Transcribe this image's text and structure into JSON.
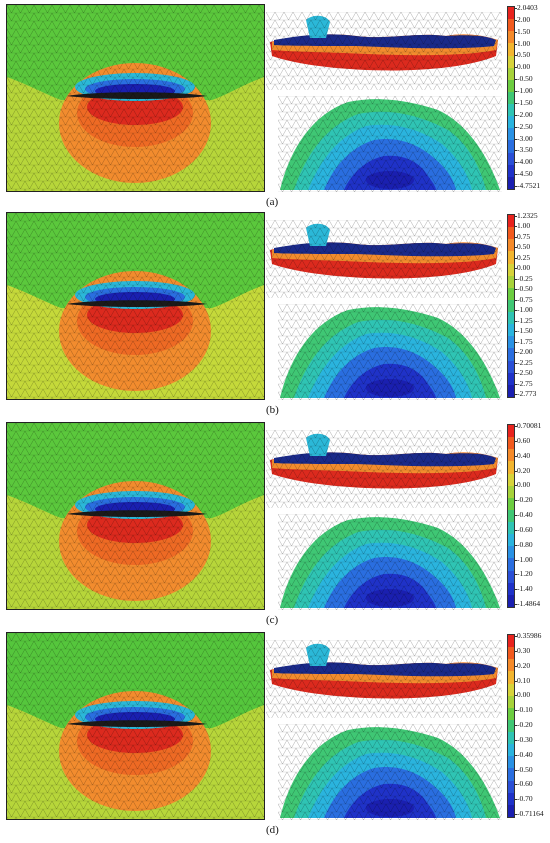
{
  "panels": [
    {
      "caption": "(a)",
      "ticks": [
        "2.0403",
        "2.00",
        "1.50",
        "1.00",
        "0.50",
        "0.00",
        "-0.50",
        "-1.00",
        "-1.50",
        "-2.00",
        "-2.50",
        "-3.00",
        "-3.50",
        "-4.00",
        "-4.50",
        "-4.7521"
      ],
      "upper_bg": "#5bc83c",
      "lower_bg": "#b7d63a"
    },
    {
      "caption": "(b)",
      "ticks": [
        "1.2325",
        "1.00",
        "0.75",
        "0.50",
        "0.25",
        "0.00",
        "-0.25",
        "-0.50",
        "-0.75",
        "-1.00",
        "-1.25",
        "-1.50",
        "-1.75",
        "-2.00",
        "-2.25",
        "-2.50",
        "-2.75",
        "-2.773"
      ],
      "upper_bg": "#5bc83c",
      "lower_bg": "#c5d93a"
    },
    {
      "caption": "(c)",
      "ticks": [
        "0.70081",
        "0.60",
        "0.40",
        "0.20",
        "0.00",
        "-0.20",
        "-0.40",
        "-0.60",
        "-0.80",
        "-1.00",
        "-1.20",
        "-1.40",
        "-1.4864"
      ],
      "upper_bg": "#5bc83c",
      "lower_bg": "#b7d63a"
    },
    {
      "caption": "(d)",
      "ticks": [
        "0.35986",
        "0.30",
        "0.20",
        "0.10",
        "0.00",
        "-0.10",
        "-0.20",
        "-0.30",
        "-0.40",
        "-0.50",
        "-0.60",
        "-0.70",
        "-0.71164"
      ],
      "upper_bg": "#55c63c",
      "lower_bg": "#b7d63a"
    }
  ],
  "colors": {
    "scale": [
      "#e8231e",
      "#f25a1e",
      "#f58a2a",
      "#f2b530",
      "#d6d23a",
      "#a7d23a",
      "#6ccd40",
      "#3fc774",
      "#2fc4b4",
      "#2ab4de",
      "#2a92e4",
      "#2a6ee0",
      "#2a4fd6",
      "#1f32c8",
      "#1a1fb0"
    ]
  }
}
